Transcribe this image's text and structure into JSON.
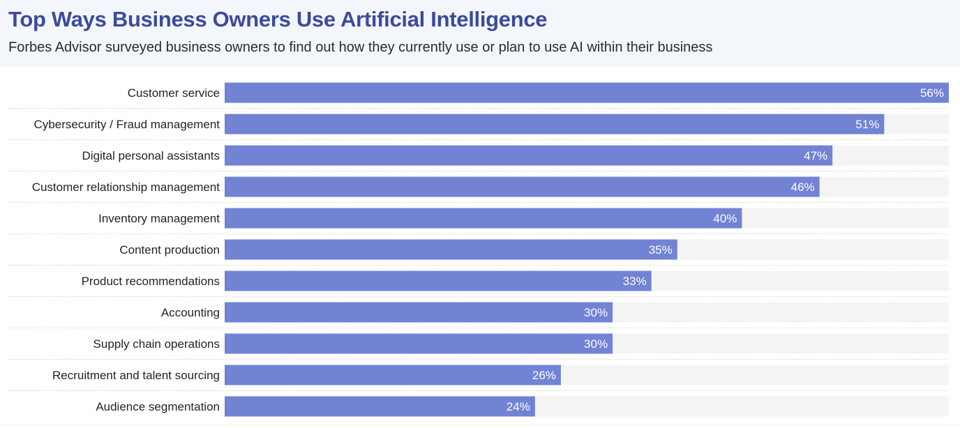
{
  "chart_data": {
    "type": "bar",
    "orientation": "horizontal",
    "title": "Top Ways Business Owners Use Artificial Intelligence",
    "subtitle": "Forbes Advisor surveyed business owners to find out how they currently use or plan to use AI within their business",
    "categories": [
      "Customer service",
      "Cybersecurity / Fraud management",
      "Digital personal assistants",
      "Customer relationship management",
      "Inventory management",
      "Content production",
      "Product recommendations",
      "Accounting",
      "Supply chain operations",
      "Recruitment and talent sourcing",
      "Audience segmentation"
    ],
    "values": [
      56,
      51,
      47,
      46,
      40,
      35,
      33,
      30,
      30,
      26,
      24
    ],
    "value_labels": [
      "56%",
      "51%",
      "47%",
      "46%",
      "40%",
      "35%",
      "33%",
      "30%",
      "30%",
      "26%",
      "24%"
    ],
    "xlim": [
      0,
      56
    ],
    "grid": false,
    "legend": "none",
    "colors": {
      "bar": "#7283d4",
      "track": "#f4f4f5",
      "title": "#3c4a9c",
      "separator": "#d8d8dc"
    }
  }
}
